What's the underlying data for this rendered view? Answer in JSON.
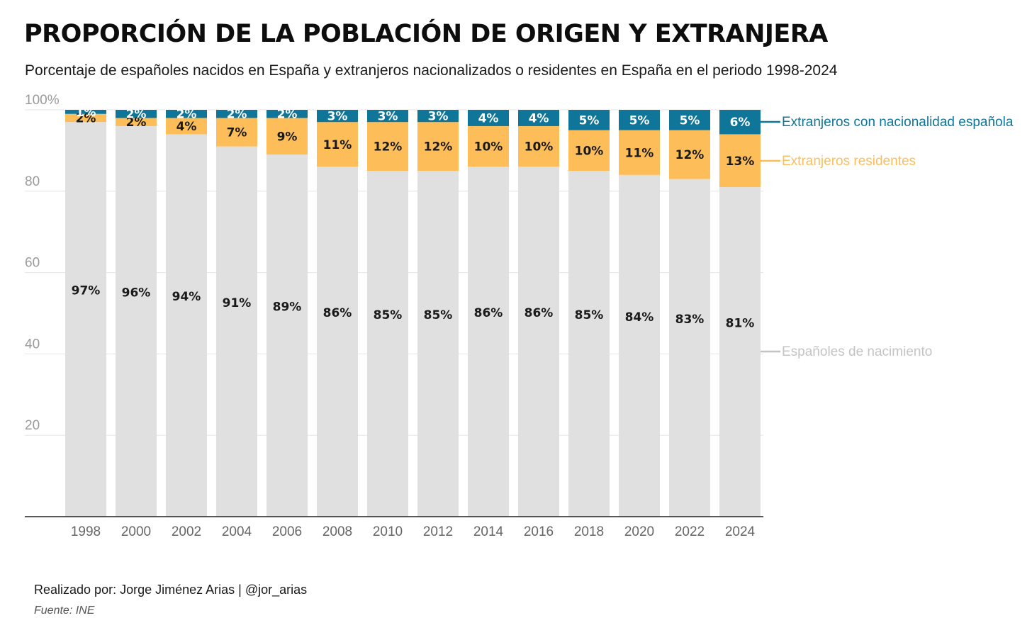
{
  "header": {
    "title": "PROPORCIÓN DE LA POBLACIÓN DE ORIGEN Y EXTRANJERA",
    "subtitle": "Porcentaje de españoles nacidos en España y extranjeros nacionalizados o residentes en España en el periodo 1998-2024"
  },
  "footer": {
    "credit": "Realizado por: Jorge Jiménez Arias | @jor_arias",
    "source": "Fuente: INE"
  },
  "chart_data": {
    "type": "bar",
    "stacked": true,
    "categories": [
      "1998",
      "2000",
      "2002",
      "2004",
      "2006",
      "2008",
      "2010",
      "2012",
      "2014",
      "2016",
      "2018",
      "2020",
      "2022",
      "2024"
    ],
    "ylim": [
      0,
      100
    ],
    "yticks": [
      20,
      40,
      60,
      80,
      100
    ],
    "ytick_labels": [
      "20",
      "40",
      "60",
      "80",
      "100%"
    ],
    "grid": true,
    "legend_placement": "right, inline labels",
    "series": [
      {
        "name": "Españoles de nacimiento",
        "color": "#e0e0e0",
        "label_color": "#c4c4c4",
        "text_color": "#1a1a1a",
        "values": [
          97,
          96,
          94,
          91,
          89,
          86,
          85,
          85,
          86,
          86,
          85,
          84,
          83,
          81
        ],
        "labels": [
          "97%",
          "96%",
          "94%",
          "91%",
          "89%",
          "86%",
          "85%",
          "85%",
          "86%",
          "86%",
          "85%",
          "84%",
          "83%",
          "81%"
        ]
      },
      {
        "name": "Extranjeros residentes",
        "color": "#fdbe5a",
        "label_color": "#fdbe5a",
        "text_color": "#1a1a1a",
        "values": [
          2,
          2,
          4,
          7,
          9,
          11,
          12,
          12,
          10,
          10,
          10,
          11,
          12,
          13
        ],
        "labels": [
          "2%",
          "2%",
          "4%",
          "7%",
          "9%",
          "11%",
          "12%",
          "12%",
          "10%",
          "10%",
          "10%",
          "11%",
          "12%",
          "13%"
        ]
      },
      {
        "name": "Extranjeros con nacionalidad española",
        "color": "#0f7599",
        "label_color": "#0f7599",
        "text_color": "#ffffff",
        "values": [
          1,
          2,
          2,
          2,
          2,
          3,
          3,
          3,
          4,
          4,
          5,
          5,
          5,
          6
        ],
        "labels": [
          "1%",
          "2%",
          "2%",
          "2%",
          "2%",
          "3%",
          "3%",
          "3%",
          "4%",
          "4%",
          "5%",
          "5%",
          "5%",
          "6%"
        ]
      }
    ]
  }
}
